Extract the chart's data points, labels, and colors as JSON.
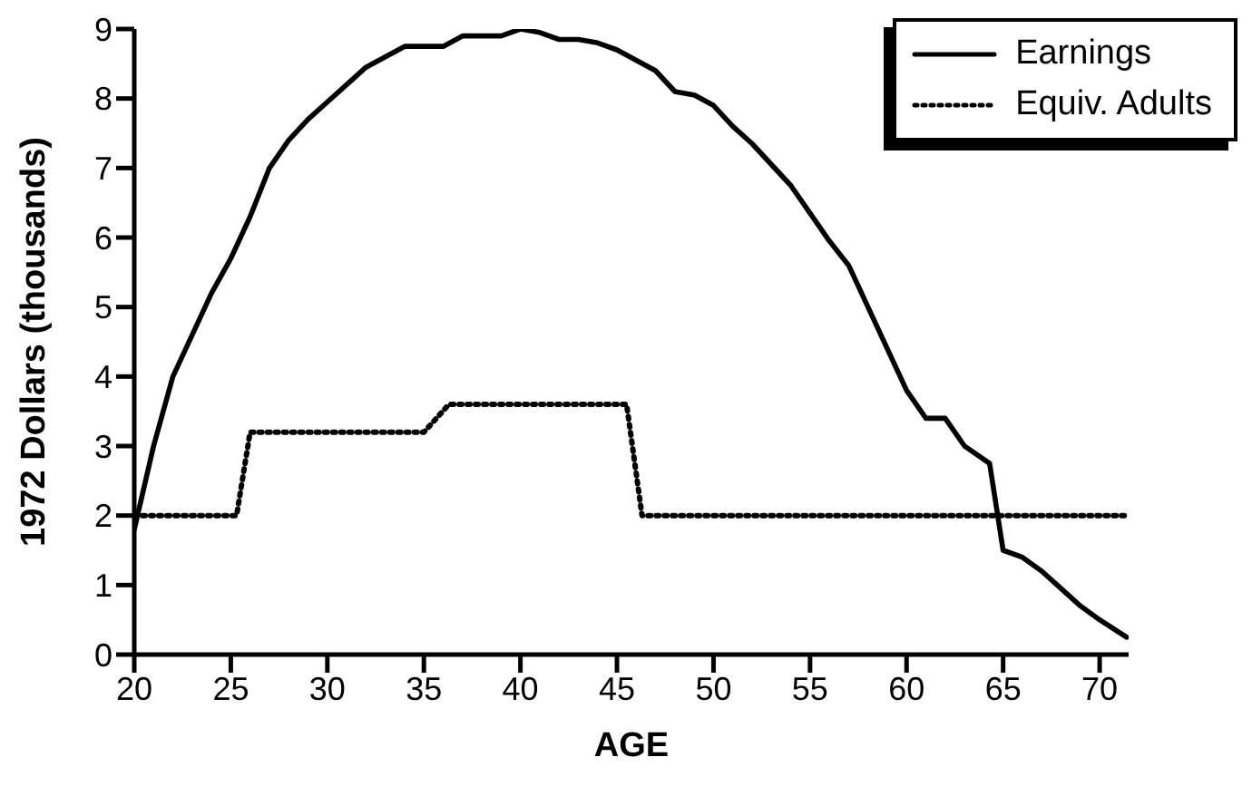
{
  "chart_data": {
    "type": "line",
    "xlabel": "AGE",
    "ylabel": "1972 Dollars (thousands)",
    "xlim": [
      20,
      71.5
    ],
    "xticks": [
      20,
      25,
      30,
      35,
      40,
      45,
      50,
      55,
      60,
      65,
      70
    ],
    "ylim": [
      0,
      9
    ],
    "yticks": [
      0,
      1,
      2,
      3,
      4,
      5,
      6,
      7,
      8,
      9
    ],
    "legend": "top right",
    "marker": "none",
    "series": [
      {
        "name": "Earnings",
        "color": "#000000",
        "line_style": "solid",
        "x": [
          20,
          21,
          22,
          23,
          24,
          25,
          26,
          27,
          28,
          29,
          30,
          31,
          32,
          33,
          34,
          35,
          36,
          37,
          38,
          39,
          40,
          41,
          42,
          43,
          44,
          45,
          46,
          47,
          48,
          49,
          50,
          51,
          52,
          53,
          54,
          55,
          56,
          57,
          58,
          59,
          60,
          61,
          62,
          63,
          64.3,
          65,
          66,
          67,
          68,
          69,
          70,
          71.4
        ],
        "values": [
          1.8,
          3.0,
          4.0,
          4.6,
          5.2,
          5.7,
          6.3,
          7.0,
          7.4,
          7.7,
          7.95,
          8.2,
          8.45,
          8.6,
          8.75,
          8.75,
          8.75,
          8.9,
          8.9,
          8.9,
          9.0,
          8.95,
          8.85,
          8.85,
          8.8,
          8.7,
          8.55,
          8.4,
          8.1,
          8.05,
          7.9,
          7.6,
          7.35,
          7.05,
          6.75,
          6.35,
          5.95,
          5.6,
          5.0,
          4.4,
          3.8,
          3.4,
          3.4,
          3.0,
          2.75,
          1.5,
          1.4,
          1.2,
          0.95,
          0.7,
          0.5,
          0.25
        ]
      },
      {
        "name": "Equiv. Adults",
        "color": "#000000",
        "line_style": "dotted",
        "x": [
          20,
          25.3,
          26,
          30,
          35,
          36.3,
          40,
          45.5,
          46.3,
          50,
          60,
          71.5
        ],
        "values": [
          2.0,
          2.0,
          3.2,
          3.2,
          3.2,
          3.6,
          3.6,
          3.6,
          2.0,
          2.0,
          2.0,
          2.0
        ]
      }
    ]
  }
}
